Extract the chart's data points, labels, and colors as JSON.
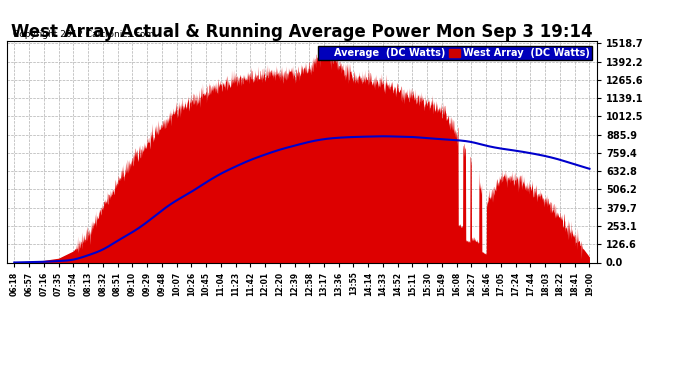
{
  "title": "West Array Actual & Running Average Power Mon Sep 3 19:14",
  "copyright": "Copyright 2012 Cartronics.com",
  "legend_labels": [
    "Average  (DC Watts)",
    "West Array  (DC Watts)"
  ],
  "yticks": [
    0.0,
    126.6,
    253.1,
    379.7,
    506.2,
    632.8,
    759.4,
    885.9,
    1012.5,
    1139.1,
    1265.6,
    1392.2,
    1518.7
  ],
  "ymax": 1518.7,
  "ymin": 0.0,
  "bg_color": "#ffffff",
  "plot_bg_color": "#ffffff",
  "grid_color": "#b0b0b0",
  "fill_color": "#dd0000",
  "line_color": "#0000cc",
  "title_fontsize": 12,
  "xtick_labels": [
    "06:18",
    "06:57",
    "07:16",
    "07:35",
    "07:54",
    "08:13",
    "08:32",
    "08:51",
    "09:10",
    "09:29",
    "09:48",
    "10:07",
    "10:26",
    "10:45",
    "11:04",
    "11:23",
    "11:42",
    "12:01",
    "12:20",
    "12:39",
    "12:58",
    "13:17",
    "13:36",
    "13:55",
    "14:14",
    "14:33",
    "14:52",
    "15:11",
    "15:30",
    "15:49",
    "16:08",
    "16:27",
    "16:46",
    "17:05",
    "17:24",
    "17:44",
    "18:03",
    "18:22",
    "18:41",
    "19:00"
  ]
}
